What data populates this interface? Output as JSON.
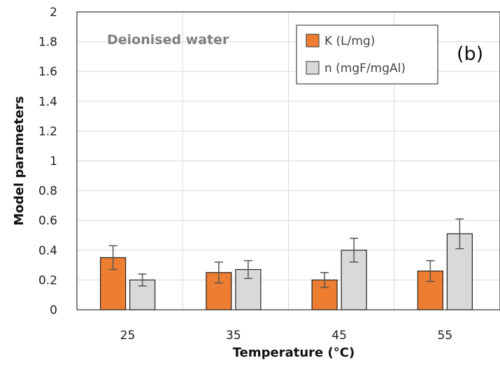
{
  "chart_data": {
    "type": "bar",
    "title": "",
    "xlabel": "Temperature (°C)",
    "ylabel": "Model parameters",
    "categories": [
      "25",
      "35",
      "45",
      "55"
    ],
    "ylim": [
      0,
      2
    ],
    "yticks": [
      "0",
      "0.2",
      "0.4",
      "0.6",
      "0.8",
      "1",
      "1.2",
      "1.4",
      "1.6",
      "1.8",
      "2"
    ],
    "series": [
      {
        "name": "K (L/mg)",
        "color": "#ED7D31",
        "values": [
          0.35,
          0.25,
          0.2,
          0.26
        ],
        "errors": [
          0.08,
          0.07,
          0.05,
          0.07
        ]
      },
      {
        "name": "n (mgF/mgAl)",
        "color": "#D9D9D9",
        "values": [
          0.2,
          0.27,
          0.4,
          0.51
        ],
        "errors": [
          0.04,
          0.06,
          0.08,
          0.1
        ]
      }
    ],
    "annotation": "Deionised water",
    "panel_label": "(b)",
    "grid": true,
    "legend_position": "top-right"
  }
}
